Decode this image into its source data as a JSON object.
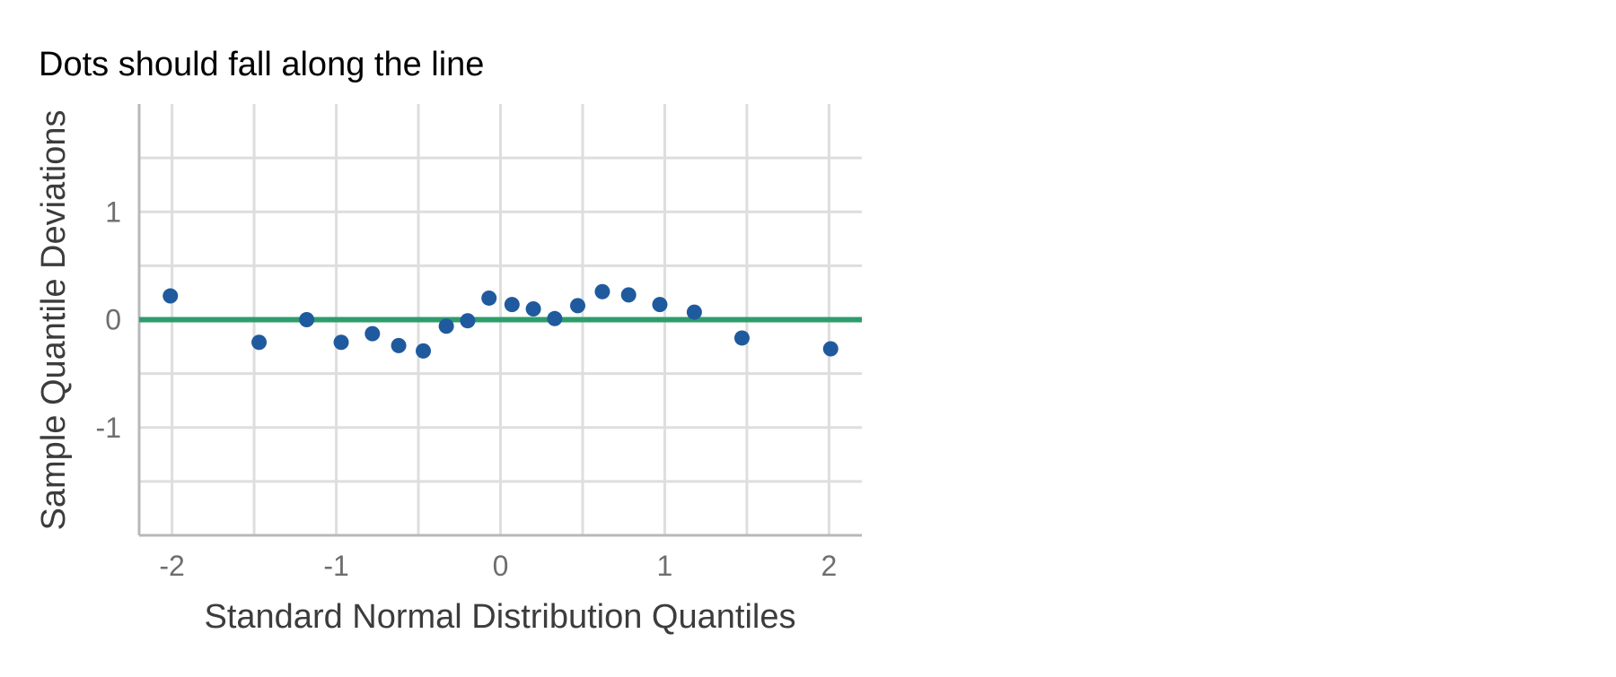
{
  "chart_data": {
    "type": "scatter",
    "title": "Dots should fall along the line",
    "xlabel": "Standard Normal Distribution Quantiles",
    "ylabel": "Sample Quantile Deviations",
    "xlim": [
      -2.2,
      2.2
    ],
    "ylim": [
      -2,
      2
    ],
    "x_ticks": [
      -2,
      -1,
      0,
      1,
      2
    ],
    "x_tick_labels": [
      "-2",
      "-1",
      "0",
      "1",
      "2"
    ],
    "y_ticks": [
      -1,
      0,
      1
    ],
    "y_tick_labels": [
      "-1",
      "0",
      "1"
    ],
    "x_minor_gridlines": [
      -1.5,
      -0.5,
      0.5,
      1.5
    ],
    "y_minor_gridlines": [
      -1.5,
      -0.5,
      0.5,
      1.5
    ],
    "grid": true,
    "reference_line": {
      "y": 0,
      "color": "#2e9d6b"
    },
    "point_color": "#1f5a9e",
    "points": [
      {
        "x": -2.01,
        "y": 0.22
      },
      {
        "x": -1.47,
        "y": -0.21
      },
      {
        "x": -1.18,
        "y": 0.0
      },
      {
        "x": -0.97,
        "y": -0.21
      },
      {
        "x": -0.78,
        "y": -0.13
      },
      {
        "x": -0.62,
        "y": -0.24
      },
      {
        "x": -0.47,
        "y": -0.29
      },
      {
        "x": -0.33,
        "y": -0.06
      },
      {
        "x": -0.2,
        "y": -0.01
      },
      {
        "x": -0.07,
        "y": 0.2
      },
      {
        "x": 0.07,
        "y": 0.14
      },
      {
        "x": 0.2,
        "y": 0.1
      },
      {
        "x": 0.33,
        "y": 0.01
      },
      {
        "x": 0.47,
        "y": 0.13
      },
      {
        "x": 0.62,
        "y": 0.26
      },
      {
        "x": 0.78,
        "y": 0.23
      },
      {
        "x": 0.97,
        "y": 0.14
      },
      {
        "x": 1.18,
        "y": 0.07
      },
      {
        "x": 1.47,
        "y": -0.17
      },
      {
        "x": 2.01,
        "y": -0.27
      }
    ]
  }
}
